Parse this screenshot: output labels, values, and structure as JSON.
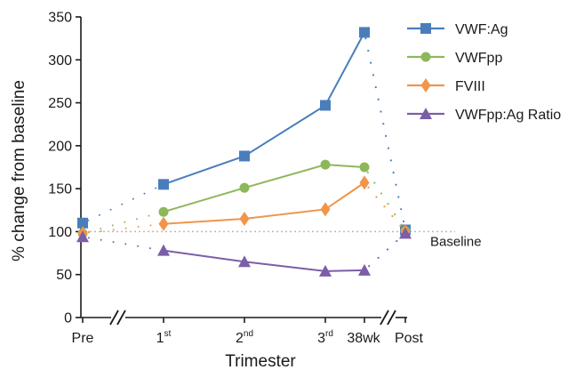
{
  "chart_data": {
    "type": "line",
    "title": "",
    "xlabel": "Trimester",
    "ylabel": "% change from baseline",
    "ylim": [
      0,
      350
    ],
    "yticks": [
      0,
      50,
      100,
      150,
      200,
      250,
      300,
      350
    ],
    "categories": [
      "Pre",
      "1st",
      "2nd",
      "3rd",
      "38wk",
      "Post"
    ],
    "tick_labels": [
      {
        "main": "Pre",
        "sup": ""
      },
      {
        "main": "1",
        "sup": "st"
      },
      {
        "main": "2",
        "sup": "nd"
      },
      {
        "main": "3",
        "sup": "rd"
      },
      {
        "main": "38wk",
        "sup": ""
      },
      {
        "main": "Post",
        "sup": ""
      }
    ],
    "axis_breaks": [
      "Pre-1st",
      "38wk-Post"
    ],
    "baseline": {
      "value": 100,
      "label": "Baseline"
    },
    "legend_position": "top-right",
    "grid": false,
    "series": [
      {
        "name": "VWF:Ag",
        "color": "#4a7ebb",
        "marker": "square",
        "values": [
          110,
          155,
          188,
          247,
          332,
          102
        ]
      },
      {
        "name": "VWFpp",
        "color": "#8db85a",
        "marker": "circle",
        "values": [
          98,
          123,
          151,
          178,
          175,
          101
        ]
      },
      {
        "name": "FVIII",
        "color": "#f0954a",
        "marker": "diamond",
        "values": [
          98,
          109,
          115,
          126,
          157,
          100
        ]
      },
      {
        "name": "VWFpp:Ag Ratio",
        "color": "#7b5ea7",
        "marker": "triangle",
        "values": [
          94,
          78,
          65,
          54,
          55,
          98
        ]
      }
    ]
  }
}
